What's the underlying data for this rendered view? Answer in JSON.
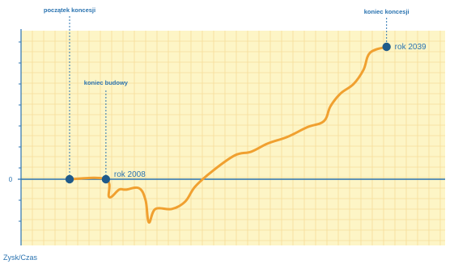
{
  "chart_data": {
    "type": "line",
    "ylabel": "Zysk/Czas",
    "zero_tick": "0",
    "annotations": {
      "concession_start": "początek koncesji",
      "construction_end": "koniec budowy",
      "concession_end": "koniec koncesji",
      "point_2008": "rok 2008",
      "point_2039": "rok 2039"
    },
    "xlim": [
      0,
      100
    ],
    "ylim": [
      -100,
      200
    ],
    "x": [
      0,
      11,
      12,
      15,
      17,
      21,
      23,
      24,
      26,
      31,
      35,
      38,
      43,
      50,
      55,
      60,
      66,
      72,
      77,
      79,
      82,
      86,
      89,
      91,
      96
    ],
    "values": [
      0,
      0,
      -24,
      -14,
      -14,
      -12,
      -28,
      -58,
      -40,
      -40,
      -30,
      -10,
      10,
      32,
      37,
      48,
      57,
      70,
      78,
      98,
      115,
      128,
      147,
      170,
      178
    ],
    "markers": [
      {
        "x": 0,
        "y": 0
      },
      {
        "x": 11,
        "y": 0
      },
      {
        "x": 96,
        "y": 178
      }
    ],
    "colors": {
      "line": "#f0a030",
      "marker": "#1f5a8a",
      "axis": "#2a73b0",
      "annotation": "#2a73b0",
      "plot_bg": "#fdf5c6",
      "grid": "#f6dc9a"
    },
    "grid": true
  }
}
